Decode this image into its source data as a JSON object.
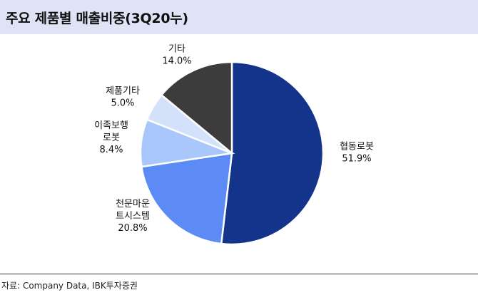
{
  "title": "주요 제품별 매출비중(3Q20누)",
  "chart_data": {
    "type": "pie",
    "title": "주요 제품별 매출비중(3Q20누)",
    "slices": [
      {
        "label_lines": [
          "협동로봇"
        ],
        "value_text": "51.9%",
        "value": 51.9,
        "color": "#14348c"
      },
      {
        "label_lines": [
          "천문마운",
          "트시스템"
        ],
        "value_text": "20.8%",
        "value": 20.8,
        "color": "#5c8bf5"
      },
      {
        "label_lines": [
          "이족보행",
          "로봇"
        ],
        "value_text": "8.4%",
        "value": 8.4,
        "color": "#a9c7fb"
      },
      {
        "label_lines": [
          "제품기타"
        ],
        "value_text": "5.0%",
        "value": 5.0,
        "color": "#d4e1fb"
      },
      {
        "label_lines": [
          "기타"
        ],
        "value_text": "14.0%",
        "value": 14.0,
        "color": "#3c3c3c"
      }
    ],
    "start": "12 o'clock",
    "direction": "clockwise",
    "legend": "none"
  },
  "source": "자료: Company Data, IBK투자증권"
}
